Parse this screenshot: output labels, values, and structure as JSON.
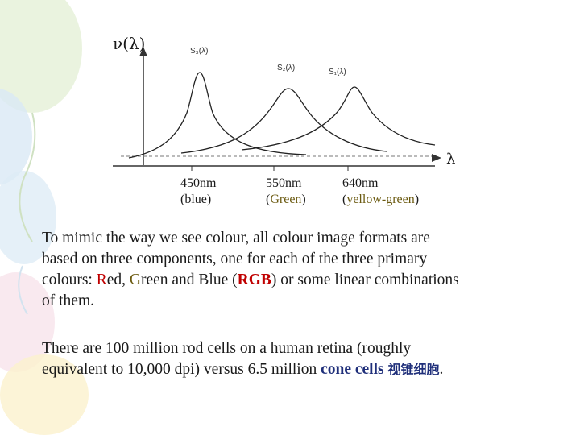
{
  "colors": {
    "background_balloons": [
      "#dfeecd",
      "#d6e6f3",
      "#f5dde6",
      "#fbf0c8"
    ],
    "green_text": "#6b5a10",
    "red_text": "#c00000",
    "cone_text": "#1f2f7a"
  },
  "diagram": {
    "y_axis_label": "ν(λ)",
    "x_axis_label": "λ",
    "cones": [
      {
        "label": "S₃(λ)",
        "peak_nm": 450
      },
      {
        "label": "S₂(λ)",
        "peak_nm": 550
      },
      {
        "label": "S₁(λ)",
        "peak_nm": 640
      }
    ],
    "wavelengths": [
      {
        "value": "450nm",
        "color_name": "(blue)"
      },
      {
        "value": "550nm",
        "color_name": "Green"
      },
      {
        "value": "640nm",
        "color_name": "yellow-green"
      }
    ]
  },
  "text": {
    "p1_a": "To mimic the way we see colour, all colour image formats are",
    "p1_b": "based on three components, one for each of the three primary",
    "p1_c_pre": "colours: ",
    "p1_c_R": "R",
    "p1_c_ed": "ed, ",
    "p1_c_G": "G",
    "p1_c_reen": "reen and Blue (",
    "p1_c_RGB": "RGB",
    "p1_c_post": ") or some linear combinations",
    "p1_d": "of them.",
    "p2_a": "There are 100 million rod cells on a human retina (roughly",
    "p2_b_pre": "equivalent to 10,000 dpi) versus 6.5 million ",
    "p2_b_cone": "cone cells",
    "p2_b_cjk": "视锥细胞",
    "p2_b_end": "."
  }
}
